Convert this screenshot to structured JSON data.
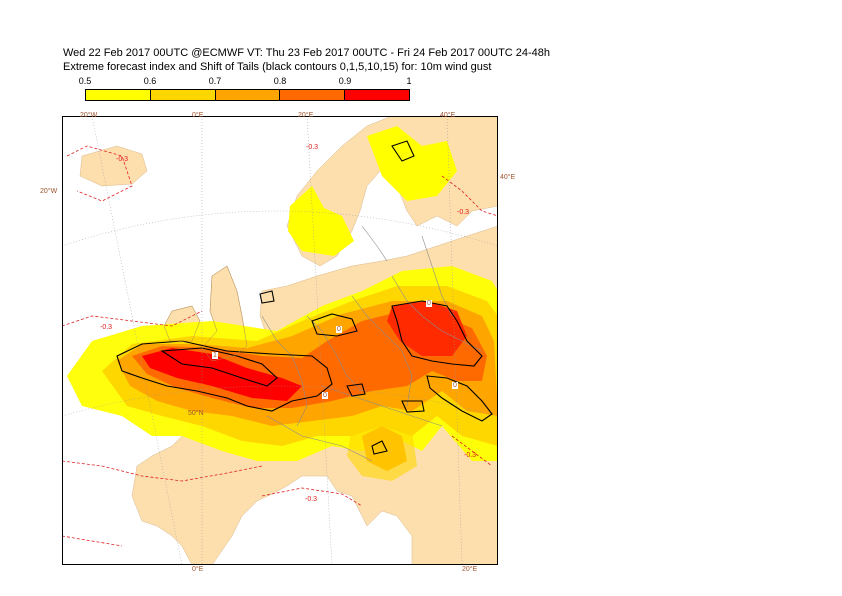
{
  "header": {
    "line1": "Wed 22 Feb 2017 00UTC @ECMWF VT: Thu 23 Feb 2017 00UTC - Fri 24 Feb 2017 00UTC  24-48h",
    "line2": "Extreme forecast index and Shift of Tails (black contours 0,1,5,10,15) for: 10m wind gust"
  },
  "colorbar": {
    "labels": [
      "0.5",
      "0.6",
      "0.7",
      "0.8",
      "0.9",
      "1"
    ],
    "colors": [
      "#ffff00",
      "#ffd700",
      "#ffa500",
      "#ff6a00",
      "#ff0000"
    ]
  },
  "map": {
    "land_color": "#fddfae",
    "sea_color": "#ffffff",
    "grid_labels": {
      "top_20w": "20°W",
      "top_0e": "0°E",
      "top_20e": "20°E",
      "top_40e": "40°E",
      "left_20w": "20°W",
      "right_40e": "40°E",
      "lat_50n": "50°N",
      "bottom_0e": "0°E",
      "bottom_20e": "20°E"
    },
    "contour_labels": {
      "efi_neg_north": "-0.3",
      "efi_neg_west": "-0.3",
      "efi_neg_atl": "-0.3",
      "efi_neg_russia": "-0.3",
      "efi_neg_south": "-0.3",
      "efi_neg_balkan": "-0.3",
      "sot_1": "1",
      "sot_0_a": "0",
      "sot_0_b": "0",
      "sot_0_c": "0",
      "sot_0_d": "0"
    }
  }
}
